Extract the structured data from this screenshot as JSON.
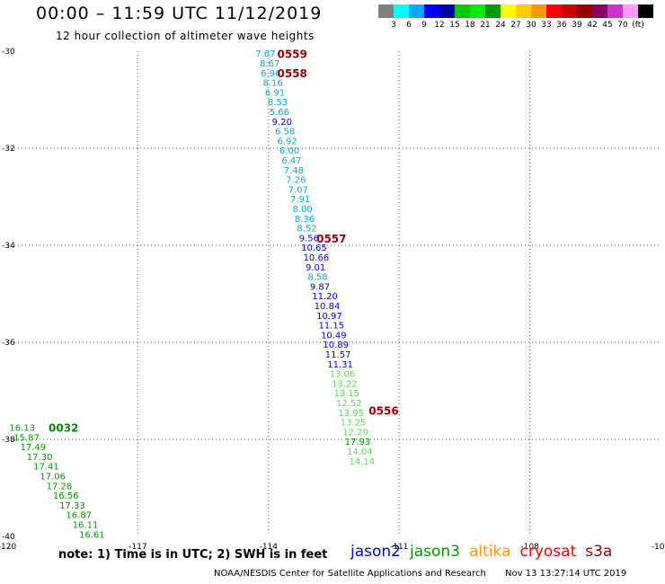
{
  "header": {
    "title": "00:00 – 11:59 UTC 11/12/2019",
    "subtitle": "12 hour collection of altimeter wave heights"
  },
  "colorbar": {
    "colors": [
      "#808080",
      "#00ffff",
      "#00aaff",
      "#0000ff",
      "#0000aa",
      "#00cc00",
      "#00ee00",
      "#009900",
      "#ffff00",
      "#ffcc00",
      "#ff9900",
      "#ff0000",
      "#cc0000",
      "#990000",
      "#880066",
      "#cc33cc",
      "#ff99ff",
      "#000000"
    ],
    "labels": [
      "3",
      "6",
      "9",
      "12",
      "15",
      "18",
      "21",
      "24",
      "27",
      "30",
      "33",
      "36",
      "39",
      "42",
      "45",
      "70",
      "(ft)"
    ]
  },
  "map": {
    "lon_range": [
      -120,
      -105
    ],
    "lat_range": [
      -40,
      -30
    ],
    "lon_ticks": [
      "-120",
      "-117",
      "-114",
      "-111",
      "-108",
      "-105"
    ],
    "lat_ticks": [
      "-30",
      "-32",
      "-34",
      "-36",
      "-38",
      "-40"
    ]
  },
  "colors": {
    "c6": "#00aadd",
    "c9": "#0000ee",
    "c12": "#000099",
    "c15": "#55dd55",
    "c18": "#009900",
    "time": "#990000",
    "time_green": "#008800"
  },
  "tracks": [
    {
      "name": "track-0556-0559",
      "time_labels": [
        {
          "text": "0559",
          "lon": -113.8,
          "lat": -30.05,
          "color": "time"
        },
        {
          "text": "0558",
          "lon": -113.8,
          "lat": -30.44,
          "color": "time"
        },
        {
          "text": "0557",
          "lon": -112.9,
          "lat": -33.85,
          "color": "time"
        },
        {
          "text": "0556",
          "lon": -111.7,
          "lat": -37.4,
          "color": "time"
        }
      ],
      "points": [
        {
          "v": "7.67",
          "lon": -114.3,
          "lat": -30.04,
          "c": "c6"
        },
        {
          "v": "8.67",
          "lon": -114.2,
          "lat": -30.24,
          "c": "c6"
        },
        {
          "v": "6.96",
          "lon": -114.18,
          "lat": -30.44,
          "c": "c6"
        },
        {
          "v": "8.16",
          "lon": -114.13,
          "lat": -30.64,
          "c": "c6"
        },
        {
          "v": "6.91",
          "lon": -114.08,
          "lat": -30.84,
          "c": "c6"
        },
        {
          "v": "8.53",
          "lon": -114.02,
          "lat": -31.04,
          "c": "c6"
        },
        {
          "v": "5.66",
          "lon": -113.98,
          "lat": -31.24,
          "c": "c6"
        },
        {
          "v": "9.20",
          "lon": -113.92,
          "lat": -31.44,
          "c": "c9"
        },
        {
          "v": "6.58",
          "lon": -113.85,
          "lat": -31.64,
          "c": "c6"
        },
        {
          "v": "6.92",
          "lon": -113.8,
          "lat": -31.84,
          "c": "c6"
        },
        {
          "v": "6.00",
          "lon": -113.75,
          "lat": -32.04,
          "c": "c6"
        },
        {
          "v": "6.47",
          "lon": -113.7,
          "lat": -32.24,
          "c": "c6"
        },
        {
          "v": "7.48",
          "lon": -113.65,
          "lat": -32.44,
          "c": "c6"
        },
        {
          "v": "7.26",
          "lon": -113.6,
          "lat": -32.64,
          "c": "c6"
        },
        {
          "v": "7.07",
          "lon": -113.55,
          "lat": -32.84,
          "c": "c6"
        },
        {
          "v": "7.91",
          "lon": -113.5,
          "lat": -33.04,
          "c": "c6"
        },
        {
          "v": "8.00",
          "lon": -113.45,
          "lat": -33.24,
          "c": "c6"
        },
        {
          "v": "8.36",
          "lon": -113.4,
          "lat": -33.44,
          "c": "c6"
        },
        {
          "v": "8.52",
          "lon": -113.35,
          "lat": -33.64,
          "c": "c6"
        },
        {
          "v": "9.56",
          "lon": -113.3,
          "lat": -33.84,
          "c": "c9"
        },
        {
          "v": "10.65",
          "lon": -113.25,
          "lat": -34.04,
          "c": "c9"
        },
        {
          "v": "10.66",
          "lon": -113.2,
          "lat": -34.24,
          "c": "c9"
        },
        {
          "v": "9.01",
          "lon": -113.15,
          "lat": -34.44,
          "c": "c9"
        },
        {
          "v": "8.58",
          "lon": -113.1,
          "lat": -34.64,
          "c": "c6"
        },
        {
          "v": "9.87",
          "lon": -113.05,
          "lat": -34.84,
          "c": "c12"
        },
        {
          "v": "11.20",
          "lon": -113.0,
          "lat": -35.04,
          "c": "c9"
        },
        {
          "v": "10.84",
          "lon": -112.95,
          "lat": -35.24,
          "c": "c9"
        },
        {
          "v": "10.97",
          "lon": -112.9,
          "lat": -35.44,
          "c": "c9"
        },
        {
          "v": "11.15",
          "lon": -112.85,
          "lat": -35.64,
          "c": "c9"
        },
        {
          "v": "10.49",
          "lon": -112.8,
          "lat": -35.84,
          "c": "c9"
        },
        {
          "v": "10.89",
          "lon": -112.75,
          "lat": -36.04,
          "c": "c9"
        },
        {
          "v": "11.57",
          "lon": -112.7,
          "lat": -36.24,
          "c": "c9"
        },
        {
          "v": "11.31",
          "lon": -112.65,
          "lat": -36.44,
          "c": "c9"
        },
        {
          "v": "13.06",
          "lon": -112.6,
          "lat": -36.64,
          "c": "c15"
        },
        {
          "v": "13.22",
          "lon": -112.55,
          "lat": -36.84,
          "c": "c15"
        },
        {
          "v": "13.15",
          "lon": -112.5,
          "lat": -37.04,
          "c": "c15"
        },
        {
          "v": "12.52",
          "lon": -112.45,
          "lat": -37.24,
          "c": "c15"
        },
        {
          "v": "13.95",
          "lon": -112.4,
          "lat": -37.44,
          "c": "c15"
        },
        {
          "v": "13.25",
          "lon": -112.35,
          "lat": -37.64,
          "c": "c15"
        },
        {
          "v": "12.29",
          "lon": -112.3,
          "lat": -37.84,
          "c": "c15"
        },
        {
          "v": "17.93",
          "lon": -112.25,
          "lat": -38.04,
          "c": "c18"
        },
        {
          "v": "14.04",
          "lon": -112.2,
          "lat": -38.24,
          "c": "c15"
        },
        {
          "v": "14.14",
          "lon": -112.15,
          "lat": -38.44,
          "c": "c15"
        }
      ]
    },
    {
      "name": "track-0032",
      "time_labels": [
        {
          "text": "0032",
          "lon": -119.05,
          "lat": -37.75,
          "color": "time_green"
        }
      ],
      "points": [
        {
          "v": "16.13",
          "lon": -119.95,
          "lat": -37.75,
          "c": "c18"
        },
        {
          "v": "15.87",
          "lon": -119.85,
          "lat": -37.95,
          "c": "c18"
        },
        {
          "v": "17.49",
          "lon": -119.7,
          "lat": -38.15,
          "c": "c18"
        },
        {
          "v": "17.30",
          "lon": -119.55,
          "lat": -38.35,
          "c": "c18"
        },
        {
          "v": "17.41",
          "lon": -119.4,
          "lat": -38.55,
          "c": "c18"
        },
        {
          "v": "17.06",
          "lon": -119.25,
          "lat": -38.75,
          "c": "c18"
        },
        {
          "v": "17.28",
          "lon": -119.1,
          "lat": -38.95,
          "c": "c18"
        },
        {
          "v": "16.56",
          "lon": -118.95,
          "lat": -39.15,
          "c": "c18"
        },
        {
          "v": "17.33",
          "lon": -118.8,
          "lat": -39.35,
          "c": "c18"
        },
        {
          "v": "16.87",
          "lon": -118.65,
          "lat": -39.55,
          "c": "c18"
        },
        {
          "v": "16.11",
          "lon": -118.5,
          "lat": -39.75,
          "c": "c18"
        },
        {
          "v": "16.61",
          "lon": -118.35,
          "lat": -39.95,
          "c": "c18"
        }
      ]
    }
  ],
  "note": "note: 1) Time is in UTC; 2) SWH is in feet",
  "legend": [
    {
      "label": "jason2",
      "color": "#0000cc"
    },
    {
      "label": "jason3",
      "color": "#009900"
    },
    {
      "label": "altika",
      "color": "#ff9900"
    },
    {
      "label": "cryosat",
      "color": "#ee0000"
    },
    {
      "label": "s3a",
      "color": "#990000"
    }
  ],
  "footer": {
    "credit": "NOAA/NESDIS Center for Satellite Applications and Research",
    "timestamp": "Nov 13 13:27:14 UTC 2019"
  }
}
